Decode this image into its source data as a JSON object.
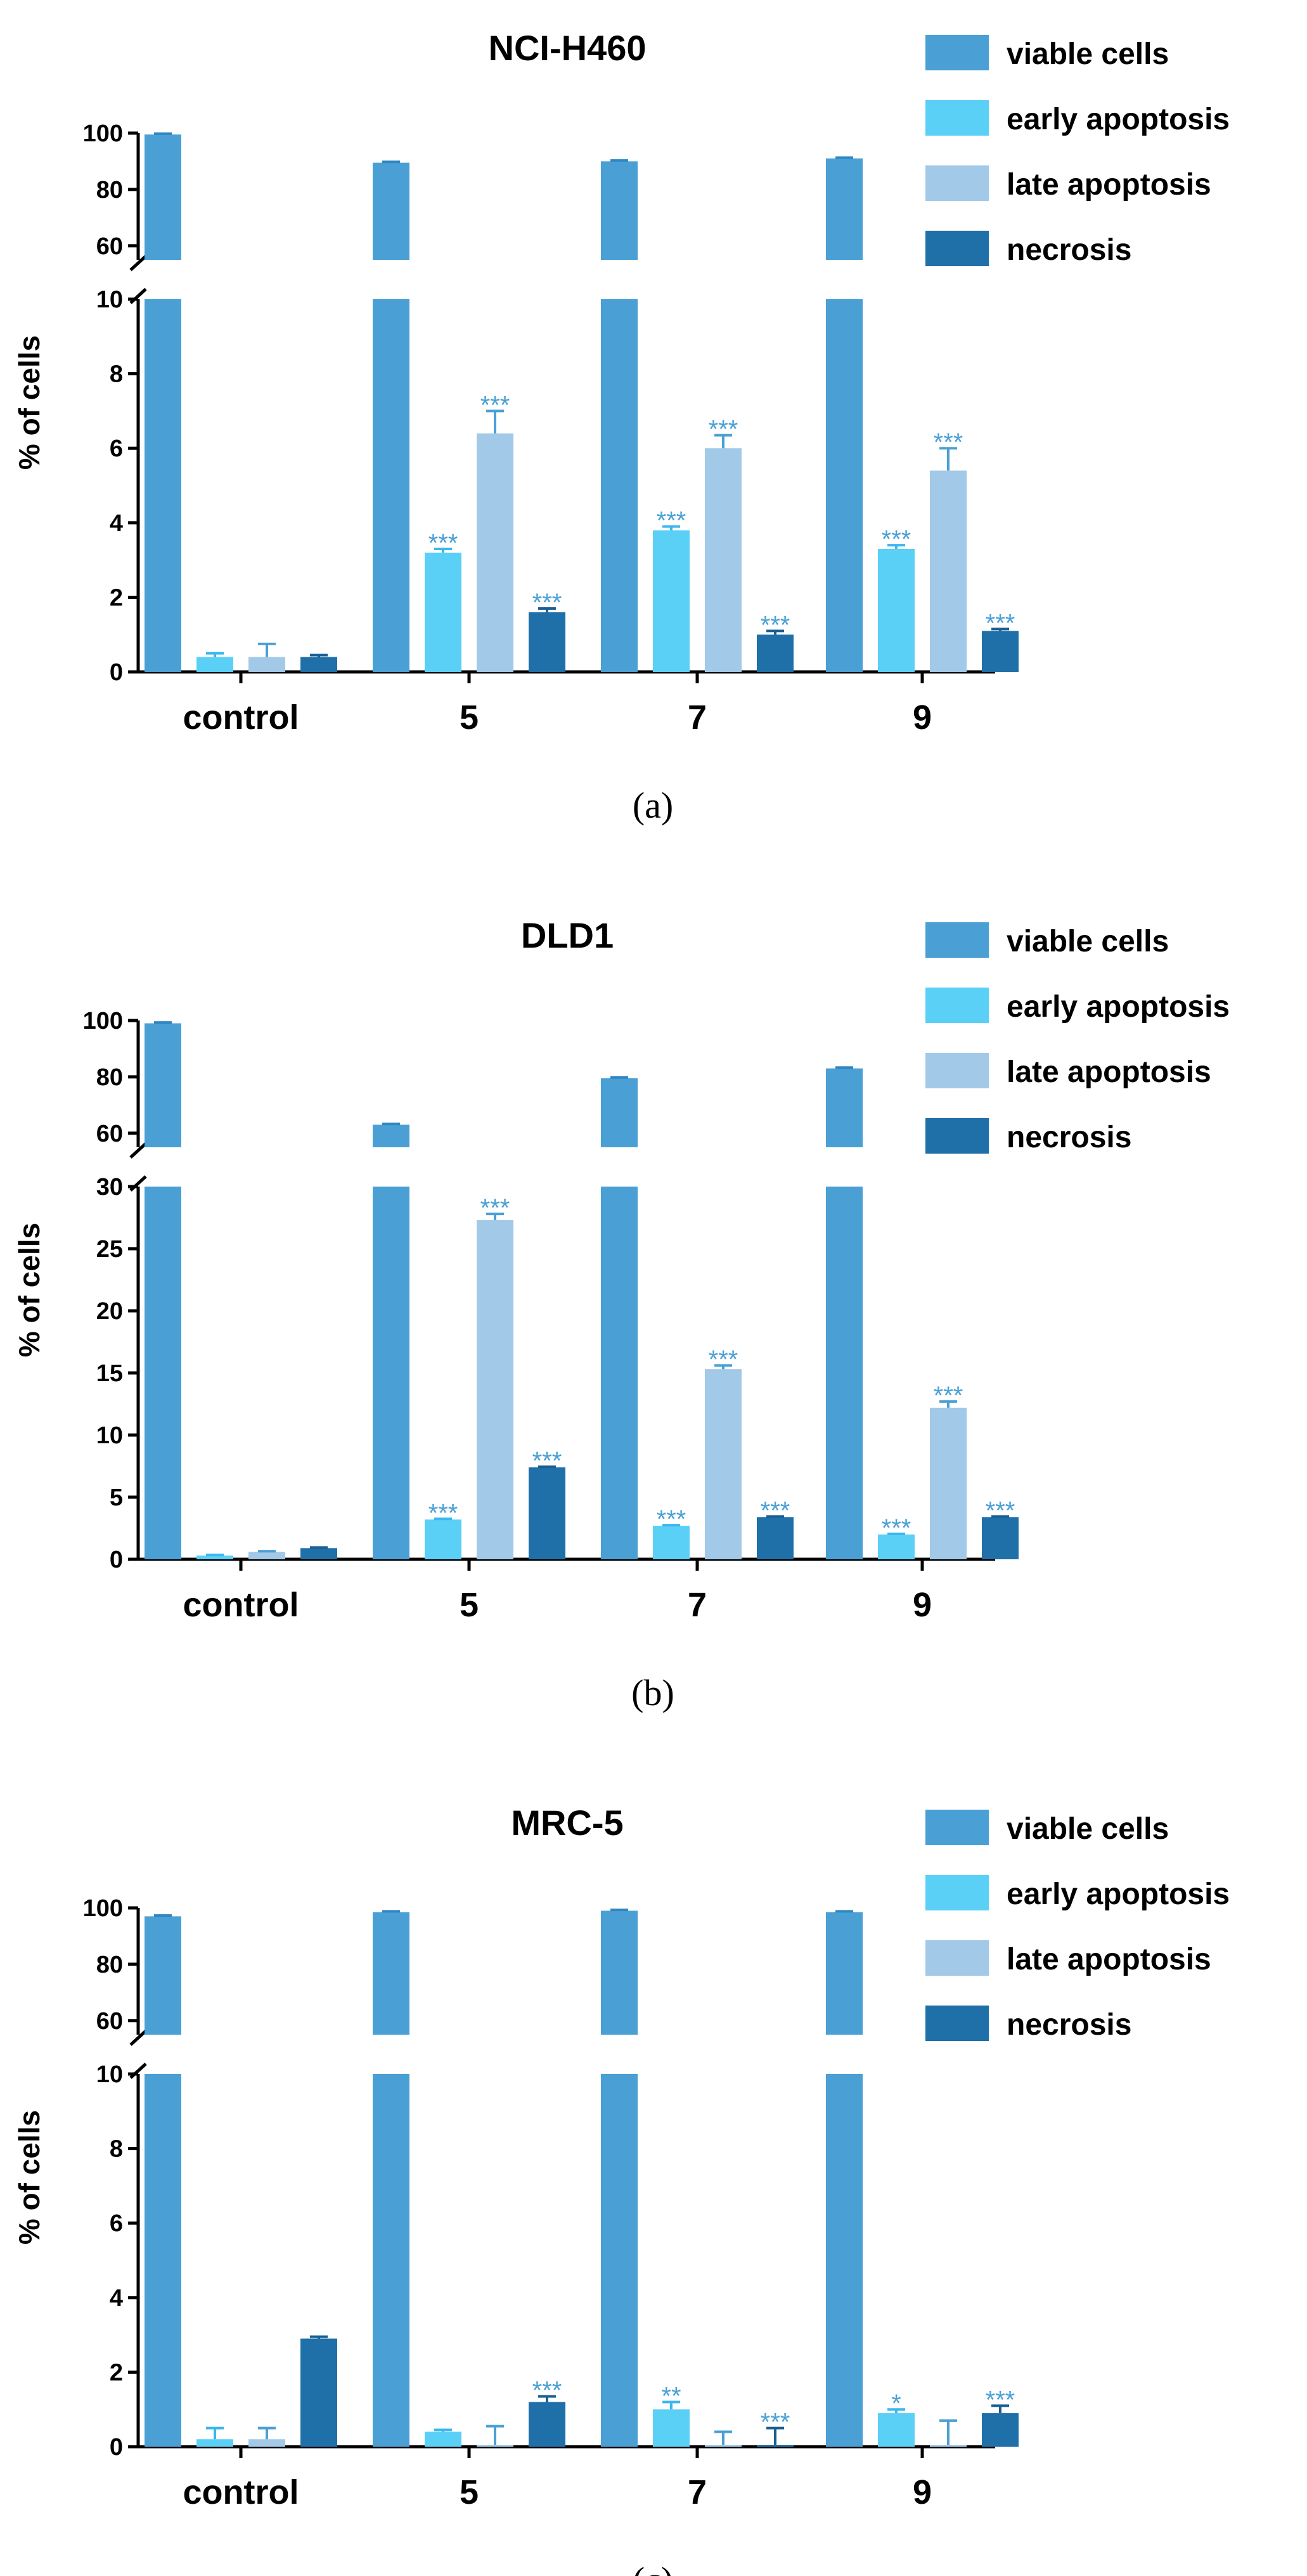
{
  "legend": [
    "viable cells",
    "early apoptosis",
    "late apoptosis",
    "necrosis"
  ],
  "colors": {
    "viable cells": "#4aa0d5",
    "early apoptosis": "#5bd0f7",
    "late apoptosis": "#a2c9e8",
    "necrosis": "#1f6fa8",
    "significance": "#4aa0d5"
  },
  "chart_data": [
    {
      "type": "bar",
      "title": "NCI-H460",
      "caption": "(a)",
      "ylabel": "% of cells",
      "categories": [
        "control",
        "5",
        "7",
        "9"
      ],
      "y_axis": {
        "broken": true,
        "lower_range": [
          0,
          10
        ],
        "lower_ticks": [
          "0",
          "2",
          "4",
          "6",
          "8",
          "10"
        ],
        "upper_range": [
          55,
          100
        ],
        "upper_ticks": [
          "60",
          "80",
          "100"
        ]
      },
      "series": [
        {
          "name": "viable cells",
          "values": [
            99.5,
            89.5,
            90,
            91
          ],
          "errors": [
            0.3,
            0.3,
            0.3,
            0.3
          ],
          "sig": [
            "",
            "",
            "",
            ""
          ]
        },
        {
          "name": "early apoptosis",
          "values": [
            0.4,
            3.2,
            3.8,
            3.3
          ],
          "errors": [
            0.1,
            0.1,
            0.1,
            0.1
          ],
          "sig": [
            "",
            "***",
            "***",
            "***"
          ]
        },
        {
          "name": "late apoptosis",
          "values": [
            0.4,
            6.4,
            6.0,
            5.4
          ],
          "errors": [
            0.35,
            0.6,
            0.35,
            0.6
          ],
          "sig": [
            "",
            "***",
            "***",
            "***"
          ]
        },
        {
          "name": "necrosis",
          "values": [
            0.4,
            1.6,
            1.0,
            1.1
          ],
          "errors": [
            0.05,
            0.1,
            0.1,
            0.05
          ],
          "sig": [
            "",
            "***",
            "***",
            "***"
          ]
        }
      ]
    },
    {
      "type": "bar",
      "title": "DLD1",
      "caption": "(b)",
      "ylabel": "% of cells",
      "categories": [
        "control",
        "5",
        "7",
        "9"
      ],
      "y_axis": {
        "broken": true,
        "lower_range": [
          0,
          30
        ],
        "lower_ticks": [
          "0",
          "5",
          "10",
          "15",
          "20",
          "25",
          "30"
        ],
        "upper_range": [
          55,
          100
        ],
        "upper_ticks": [
          "60",
          "80",
          "100"
        ]
      },
      "series": [
        {
          "name": "viable cells",
          "values": [
            99,
            63,
            79.5,
            83
          ],
          "errors": [
            0.3,
            0.3,
            0.3,
            0.3
          ],
          "sig": [
            "",
            "",
            "",
            ""
          ]
        },
        {
          "name": "early apoptosis",
          "values": [
            0.3,
            3.2,
            2.7,
            2.0
          ],
          "errors": [
            0.05,
            0.05,
            0.05,
            0.05
          ],
          "sig": [
            "",
            "***",
            "***",
            "***"
          ]
        },
        {
          "name": "late apoptosis",
          "values": [
            0.6,
            27.3,
            15.3,
            12.2
          ],
          "errors": [
            0.05,
            0.5,
            0.3,
            0.5
          ],
          "sig": [
            "",
            "***",
            "***",
            "***"
          ]
        },
        {
          "name": "necrosis",
          "values": [
            0.9,
            7.4,
            3.4,
            3.4
          ],
          "errors": [
            0.05,
            0.05,
            0.05,
            0.05
          ],
          "sig": [
            "",
            "***",
            "***",
            "***"
          ]
        }
      ]
    },
    {
      "type": "bar",
      "title": "MRC-5",
      "caption": "(c)",
      "ylabel": "% of cells",
      "categories": [
        "control",
        "5",
        "7",
        "9"
      ],
      "y_axis": {
        "broken": true,
        "lower_range": [
          0,
          10
        ],
        "lower_ticks": [
          "0",
          "2",
          "4",
          "6",
          "8",
          "10"
        ],
        "upper_range": [
          55,
          100
        ],
        "upper_ticks": [
          "60",
          "80",
          "100"
        ]
      },
      "series": [
        {
          "name": "viable cells",
          "values": [
            97,
            98.5,
            99,
            98.5
          ],
          "errors": [
            0.3,
            0.3,
            0.3,
            0.3
          ],
          "sig": [
            "",
            "",
            "",
            ""
          ]
        },
        {
          "name": "early apoptosis",
          "values": [
            0.2,
            0.4,
            1.0,
            0.9
          ],
          "errors": [
            0.3,
            0.05,
            0.2,
            0.1
          ],
          "sig": [
            "",
            "",
            "**",
            "*"
          ]
        },
        {
          "name": "late apoptosis",
          "values": [
            0.2,
            0.05,
            0.05,
            0.05
          ],
          "errors": [
            0.3,
            0.5,
            0.35,
            0.65
          ],
          "sig": [
            "",
            "",
            "",
            ""
          ]
        },
        {
          "name": "necrosis",
          "values": [
            2.9,
            1.2,
            0.05,
            0.9
          ],
          "errors": [
            0.05,
            0.15,
            0.45,
            0.2
          ],
          "sig": [
            "",
            "***",
            "***",
            "***"
          ]
        }
      ]
    }
  ]
}
